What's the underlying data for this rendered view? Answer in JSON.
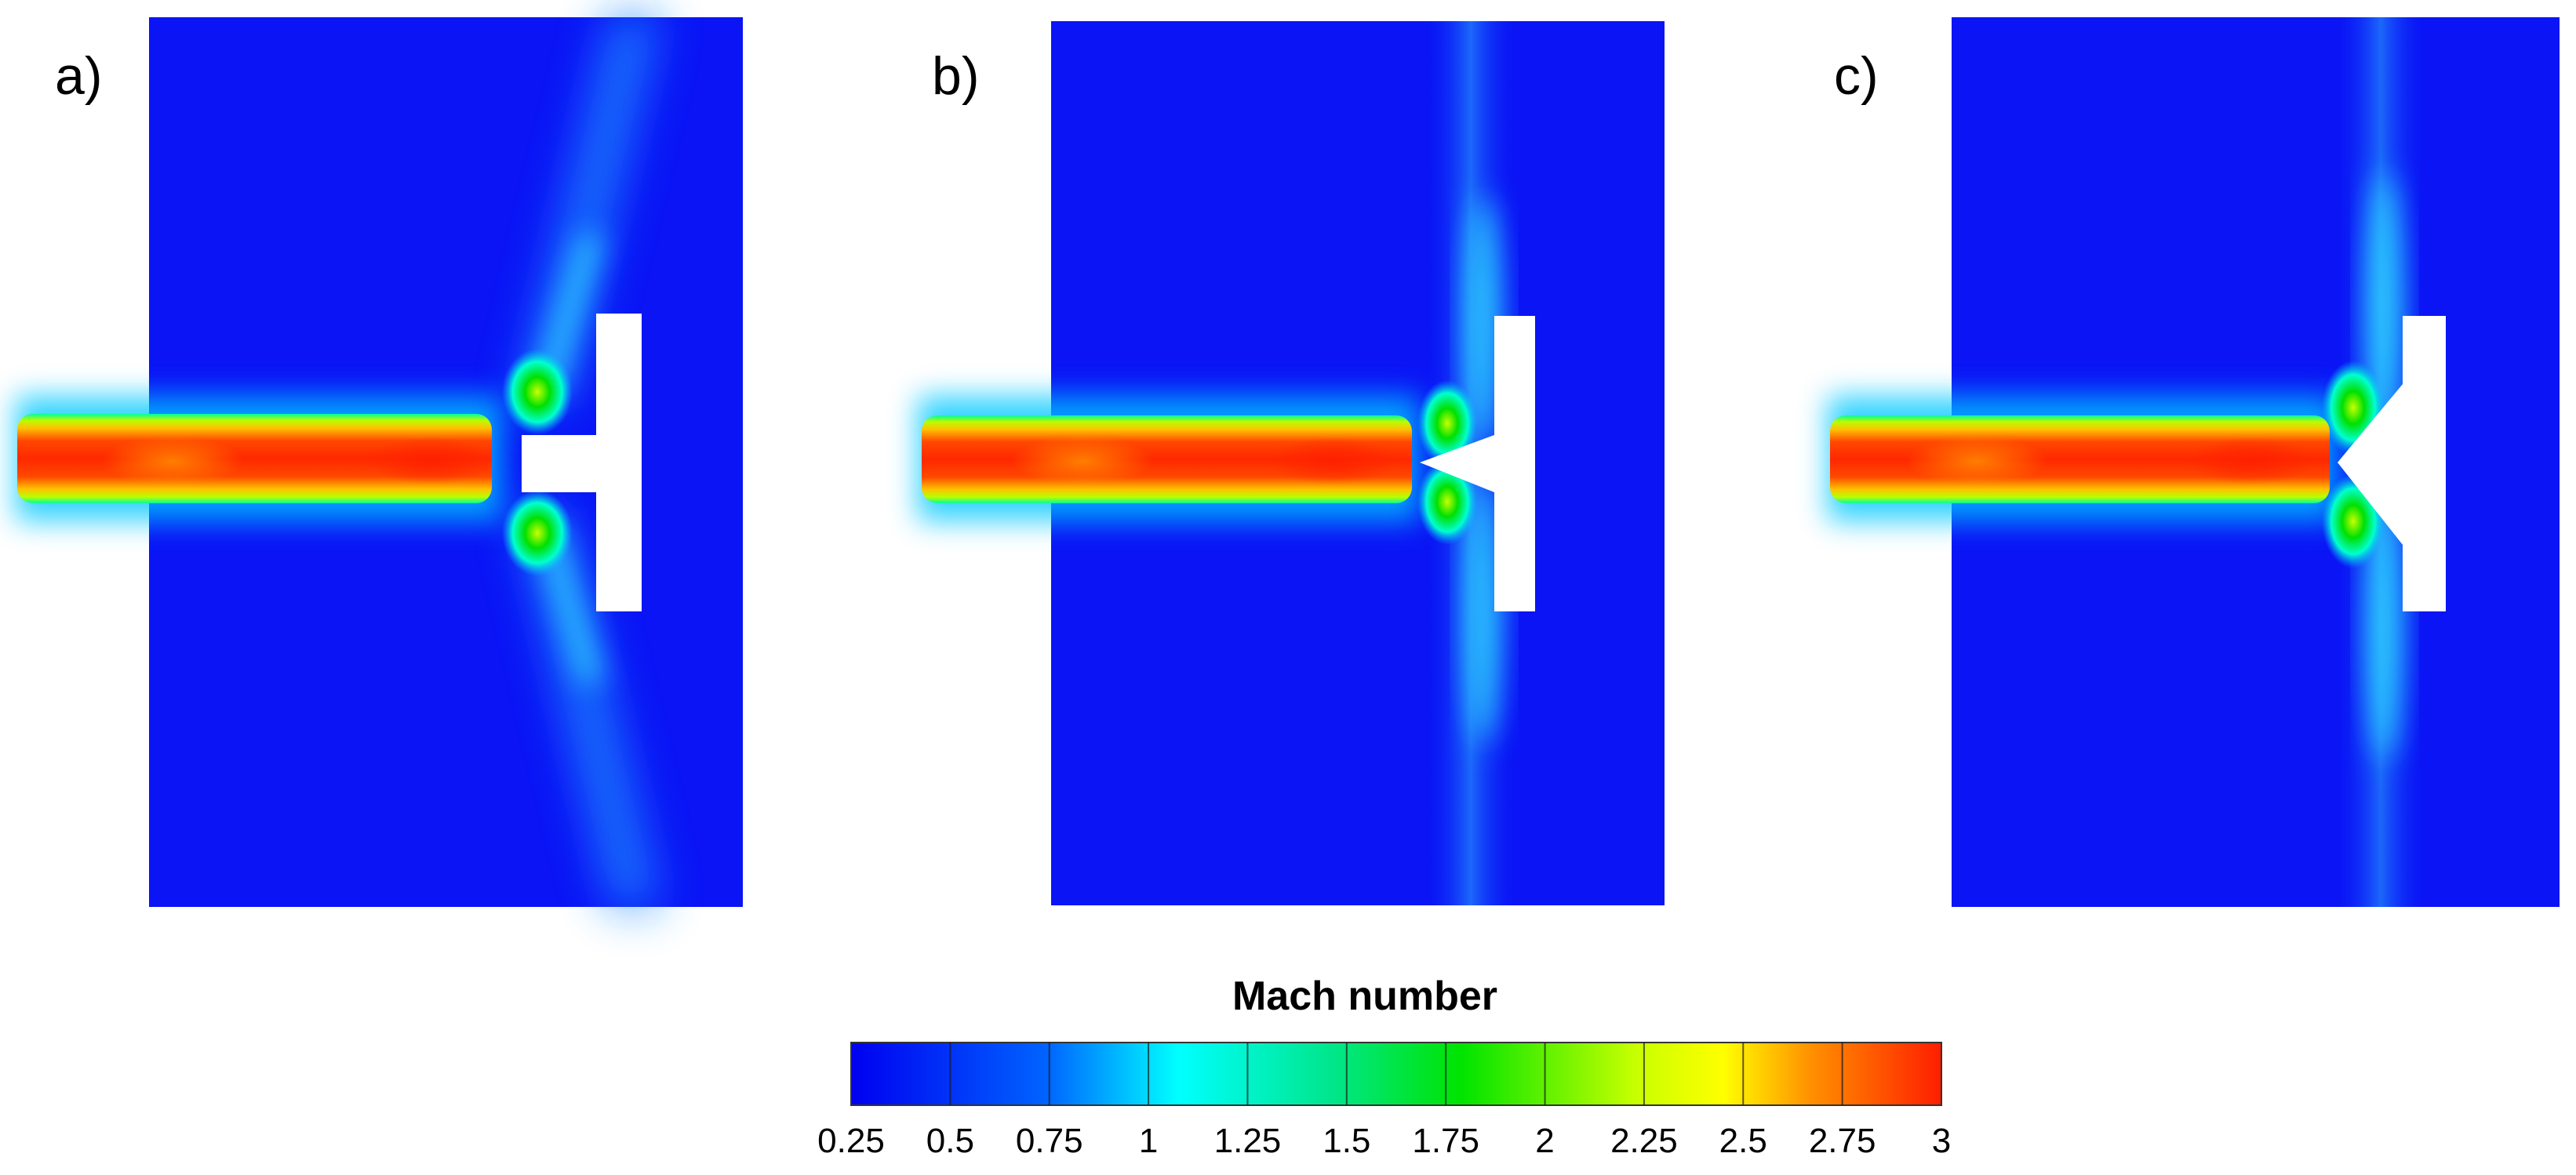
{
  "panels": [
    {
      "label": "a)",
      "tip": "flat"
    },
    {
      "label": "b)",
      "tip": "concave"
    },
    {
      "label": "c)",
      "tip": "v-notch"
    }
  ],
  "colorbar": {
    "title": "Mach number",
    "ticks": [
      "0.25",
      "0.5",
      "0.75",
      "1",
      "1.25",
      "1.5",
      "1.75",
      "2",
      "2.25",
      "2.5",
      "2.75",
      "3"
    ],
    "range": [
      0.25,
      3
    ],
    "colors": [
      "#0000f0",
      "#00b4ff",
      "#00ffdc",
      "#00e400",
      "#ffff00",
      "#ff8c00",
      "#ff1e00"
    ]
  }
}
